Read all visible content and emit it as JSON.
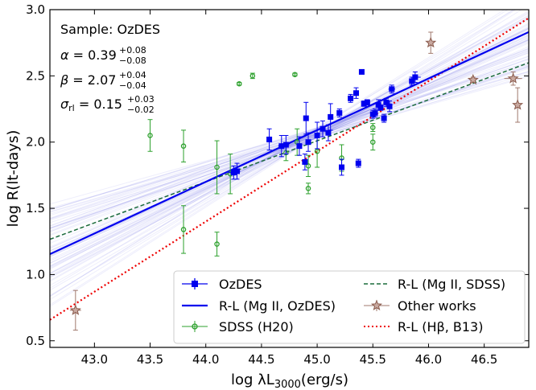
{
  "chart_data": {
    "type": "scatter",
    "xlabel": "log λL",
    "xlabel_sub": "3000",
    "xlabel_unit": "(erg/s)",
    "ylabel": "log R(lt-days)",
    "xlim": [
      42.6,
      46.9
    ],
    "ylim": [
      0.45,
      3.0
    ],
    "xticks": [
      43.0,
      43.5,
      44.0,
      44.5,
      45.0,
      45.5,
      46.0,
      46.5
    ],
    "yticks": [
      0.5,
      1.0,
      1.5,
      2.0,
      2.5,
      3.0
    ],
    "annotation": {
      "sample": "Sample: OzDES",
      "alpha": {
        "sym": "α",
        "val": "0.39",
        "up": "+0.08",
        "lo": "−0.08"
      },
      "beta": {
        "sym": "β",
        "val": "2.07",
        "up": "+0.04",
        "lo": "−0.04"
      },
      "sigma": {
        "sym": "σ",
        "sub": "rl",
        "val": "0.15",
        "up": "+0.03",
        "lo": "−0.02"
      }
    },
    "legend": {
      "position": "lower-right",
      "entries": [
        {
          "key": "ozdes",
          "label": "OzDES"
        },
        {
          "key": "rl_mgii_ozdes",
          "label": "R-L (Mg II, OzDES)"
        },
        {
          "key": "sdss",
          "label": "SDSS (H20)"
        },
        {
          "key": "rl_mgii_sdss",
          "label": "R-L (Mg II, SDSS)"
        },
        {
          "key": "other",
          "label": "Other works"
        },
        {
          "key": "rl_hbeta",
          "label": "R-L (Hβ, B13)"
        }
      ]
    },
    "colors": {
      "ozdes": "#0000ee",
      "sdss": "#2ca02c",
      "other": "#a0786c",
      "rl_mgii_sdss": "#1a6b3a",
      "rl_hbeta": "#ee0000",
      "bundle": "#7b7bea"
    },
    "lines": {
      "ozdes_fit": {
        "x0": 44.0,
        "y0": 1.7,
        "alpha": 0.39
      },
      "sdss_fit": {
        "x0": 44.0,
        "y0": 1.7,
        "alpha": 0.31
      },
      "hbeta_fit": {
        "x0": 44.0,
        "y0": 1.4,
        "alpha": 0.53
      }
    },
    "series": [
      {
        "name": "OzDES",
        "points": [
          {
            "x": 44.25,
            "y": 1.77,
            "yerr": 0.05,
            "xerr": 0.05
          },
          {
            "x": 44.28,
            "y": 1.78,
            "yerr": 0.06,
            "xerr": 0.03
          },
          {
            "x": 44.57,
            "y": 2.02,
            "yerr": 0.08,
            "xerr": 0.02
          },
          {
            "x": 44.68,
            "y": 1.97,
            "yerr": 0.08,
            "xerr": 0.03
          },
          {
            "x": 44.72,
            "y": 1.98,
            "yerr": 0.07,
            "xerr": 0.03
          },
          {
            "x": 44.84,
            "y": 1.97,
            "yerr": 0.07,
            "xerr": 0.02
          },
          {
            "x": 44.89,
            "y": 1.85,
            "yerr": 0.06,
            "xerr": 0.02
          },
          {
            "x": 44.9,
            "y": 2.18,
            "yerr": 0.12,
            "xerr": 0.02
          },
          {
            "x": 44.92,
            "y": 2.0,
            "yerr": 0.07,
            "xerr": 0.02
          },
          {
            "x": 45.0,
            "y": 2.05,
            "yerr": 0.1,
            "xerr": 0.02
          },
          {
            "x": 45.05,
            "y": 2.1,
            "yerr": 0.06,
            "xerr": 0.02
          },
          {
            "x": 45.1,
            "y": 2.07,
            "yerr": 0.06,
            "xerr": 0.02
          },
          {
            "x": 45.12,
            "y": 2.19,
            "yerr": 0.1,
            "xerr": 0.02
          },
          {
            "x": 45.2,
            "y": 2.22,
            "yerr": 0.03,
            "xerr": 0.02
          },
          {
            "x": 45.22,
            "y": 1.81,
            "yerr": 0.06,
            "xerr": 0.02
          },
          {
            "x": 45.3,
            "y": 2.33,
            "yerr": 0.03,
            "xerr": 0.02
          },
          {
            "x": 45.35,
            "y": 2.37,
            "yerr": 0.04,
            "xerr": 0.02
          },
          {
            "x": 45.37,
            "y": 1.84,
            "yerr": 0.03,
            "xerr": 0.02
          },
          {
            "x": 45.4,
            "y": 2.53,
            "yerr": 0.01,
            "xerr": 0.02
          },
          {
            "x": 45.42,
            "y": 2.29,
            "yerr": 0.02,
            "xerr": 0.02
          },
          {
            "x": 45.45,
            "y": 2.3,
            "yerr": 0.02,
            "xerr": 0.02
          },
          {
            "x": 45.5,
            "y": 2.21,
            "yerr": 0.03,
            "xerr": 0.02
          },
          {
            "x": 45.52,
            "y": 2.22,
            "yerr": 0.03,
            "xerr": 0.02
          },
          {
            "x": 45.55,
            "y": 2.28,
            "yerr": 0.04,
            "xerr": 0.02
          },
          {
            "x": 45.57,
            "y": 2.26,
            "yerr": 0.02,
            "xerr": 0.02
          },
          {
            "x": 45.6,
            "y": 2.18,
            "yerr": 0.03,
            "xerr": 0.02
          },
          {
            "x": 45.62,
            "y": 2.3,
            "yerr": 0.03,
            "xerr": 0.02
          },
          {
            "x": 45.65,
            "y": 2.27,
            "yerr": 0.04,
            "xerr": 0.02
          },
          {
            "x": 45.67,
            "y": 2.4,
            "yerr": 0.03,
            "xerr": 0.03
          },
          {
            "x": 45.85,
            "y": 2.46,
            "yerr": 0.03,
            "xerr": 0.02
          },
          {
            "x": 45.88,
            "y": 2.49,
            "yerr": 0.04,
            "xerr": 0.05
          }
        ]
      },
      {
        "name": "SDSS (H20)",
        "points": [
          {
            "x": 43.5,
            "y": 2.05,
            "yerr": 0.12
          },
          {
            "x": 43.8,
            "y": 1.97,
            "yerr": 0.12
          },
          {
            "x": 43.8,
            "y": 1.34,
            "yerr": 0.18
          },
          {
            "x": 44.1,
            "y": 1.81,
            "yerr": 0.2
          },
          {
            "x": 44.1,
            "y": 1.23,
            "yerr": 0.09
          },
          {
            "x": 44.22,
            "y": 1.76,
            "yerr": 0.15
          },
          {
            "x": 44.3,
            "y": 2.44,
            "yerr": 0.01
          },
          {
            "x": 44.42,
            "y": 2.5,
            "yerr": 0.02
          },
          {
            "x": 44.72,
            "y": 1.92,
            "yerr": 0.06
          },
          {
            "x": 44.8,
            "y": 2.51,
            "yerr": 0.01
          },
          {
            "x": 44.82,
            "y": 2.0,
            "yerr": 0.1
          },
          {
            "x": 44.92,
            "y": 1.65,
            "yerr": 0.04
          },
          {
            "x": 44.92,
            "y": 1.82,
            "yerr": 0.08
          },
          {
            "x": 45.0,
            "y": 1.93,
            "yerr": 0.12
          },
          {
            "x": 45.22,
            "y": 1.88,
            "yerr": 0.1
          },
          {
            "x": 45.5,
            "y": 2.11,
            "yerr": 0.03
          },
          {
            "x": 45.5,
            "y": 2.0,
            "yerr": 0.06
          }
        ]
      },
      {
        "name": "Other works",
        "points": [
          {
            "x": 42.83,
            "y": 0.73,
            "yerr": 0.15,
            "xerr": 0.05
          },
          {
            "x": 46.02,
            "y": 2.75,
            "yerr": 0.08,
            "xerr": 0.03
          },
          {
            "x": 46.4,
            "y": 2.47,
            "yerr": 0.02,
            "xerr": 0.03
          },
          {
            "x": 46.76,
            "y": 2.48,
            "yerr": 0.05,
            "xerr": 0.08
          },
          {
            "x": 46.8,
            "y": 2.28,
            "yerr": 0.13,
            "xerr": 0.03
          }
        ]
      }
    ]
  }
}
